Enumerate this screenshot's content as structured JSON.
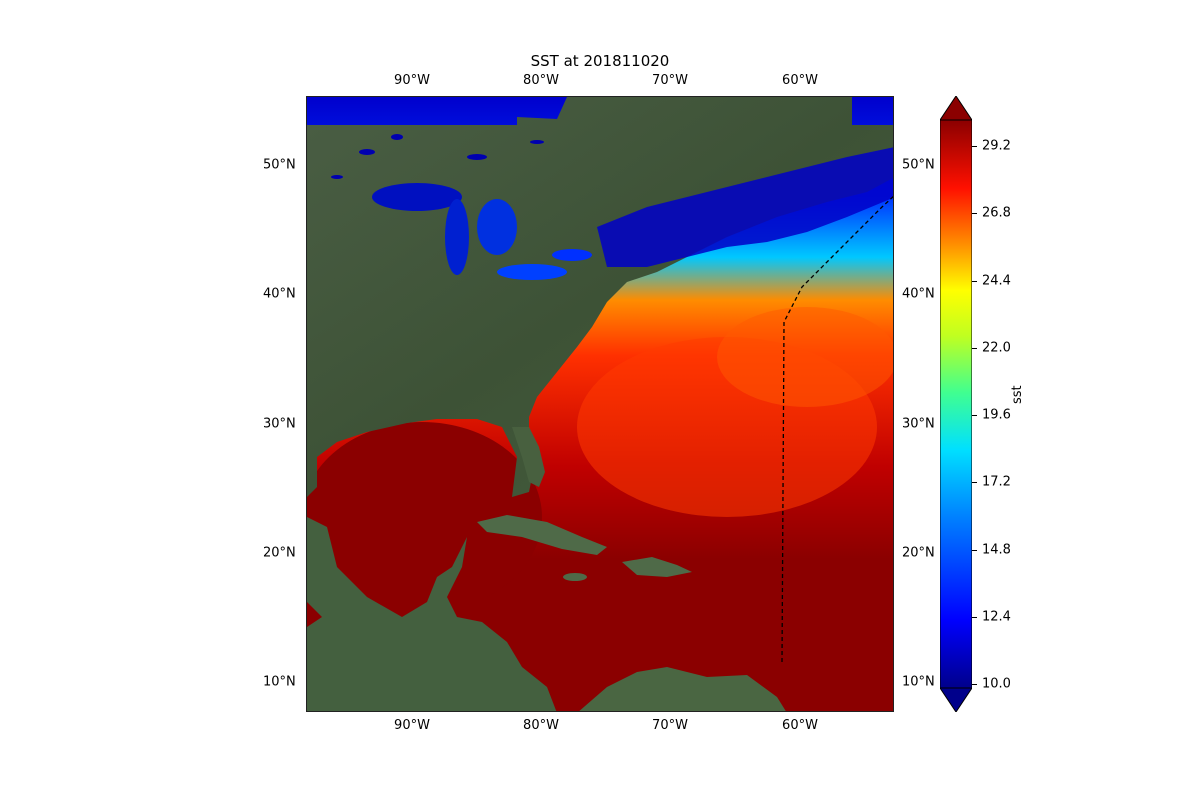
{
  "title": "SST at 201811020",
  "lon_labels": [
    "90°W",
    "80°W",
    "70°W",
    "60°W"
  ],
  "lat_labels": [
    "50°N",
    "40°N",
    "30°N",
    "20°N",
    "10°N"
  ],
  "colorbar": {
    "label": "sst",
    "ticks": [
      "29.2",
      "26.8",
      "24.4",
      "22.0",
      "19.6",
      "17.2",
      "14.8",
      "12.4",
      "10.0"
    ],
    "range": [
      10.0,
      30.4
    ]
  },
  "colors": {
    "land": "#3e5a3a",
    "ocean_warm": "#8b0000",
    "ocean_mid": "#ff4500",
    "cold": "#0000cd",
    "track": "#000000"
  }
}
